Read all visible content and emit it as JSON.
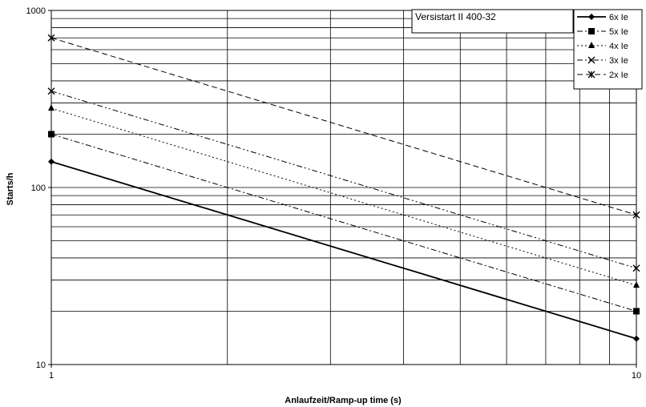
{
  "chart_data": {
    "type": "line",
    "title": "",
    "annotation": "Versistart II 400-32",
    "xlabel": "Anlaufzeit/Ramp-up time (s)",
    "ylabel": "Starts/h",
    "x_scale": "log",
    "y_scale": "log",
    "xlim": [
      1,
      10
    ],
    "ylim": [
      10,
      1000
    ],
    "x_ticks": [
      "1",
      "10"
    ],
    "y_ticks": [
      "10",
      "100",
      "1000"
    ],
    "grid": true,
    "legend_position": "top-right",
    "series": [
      {
        "name": "6x Ie",
        "marker": "diamond",
        "dash": "solid",
        "x": [
          1,
          10
        ],
        "y": [
          140,
          14
        ]
      },
      {
        "name": "5x Ie",
        "marker": "square",
        "dash": "dash-dot",
        "x": [
          1,
          10
        ],
        "y": [
          200,
          20
        ]
      },
      {
        "name": "4x Ie",
        "marker": "triangle",
        "dash": "dot",
        "x": [
          1,
          10
        ],
        "y": [
          280,
          28
        ]
      },
      {
        "name": "3x Ie",
        "marker": "x",
        "dash": "dash-dot-dot",
        "x": [
          1,
          10
        ],
        "y": [
          350,
          35
        ]
      },
      {
        "name": "2x Ie",
        "marker": "asterisk",
        "dash": "dash",
        "x": [
          1,
          10
        ],
        "y": [
          700,
          70
        ]
      }
    ]
  }
}
